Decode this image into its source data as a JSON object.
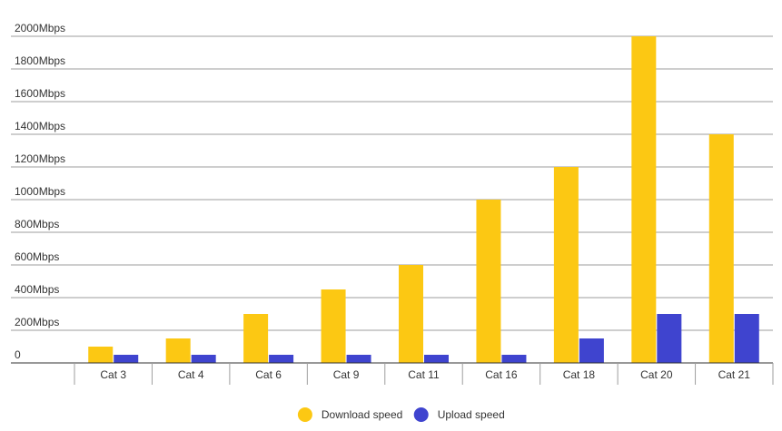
{
  "chart_data": {
    "type": "bar",
    "title": "",
    "xlabel": "",
    "ylabel": "",
    "categories": [
      "Cat 3",
      "Cat 4",
      "Cat 6",
      "Cat 9",
      "Cat 11",
      "Cat 16",
      "Cat 18",
      "Cat 20",
      "Cat 21"
    ],
    "series": [
      {
        "name": "Download speed",
        "color": "#fcc813",
        "values": [
          100,
          150,
          300,
          450,
          600,
          1000,
          1200,
          2000,
          1400
        ]
      },
      {
        "name": "Upload speed",
        "color": "#3f44cf",
        "values": [
          50,
          50,
          50,
          50,
          50,
          50,
          150,
          300,
          300
        ]
      }
    ],
    "ylim": [
      0,
      2000
    ],
    "y_ticks": [
      "0",
      "200Mbps",
      "400Mbps",
      "600Mbps",
      "800Mbps",
      "1000Mbps",
      "1200Mbps",
      "1400Mbps",
      "1600Mbps",
      "1800Mbps",
      "2000Mbps"
    ],
    "y_tick_values": [
      0,
      200,
      400,
      600,
      800,
      1000,
      1200,
      1400,
      1600,
      1800,
      2000
    ],
    "grid": true,
    "legend_position": "bottom"
  }
}
